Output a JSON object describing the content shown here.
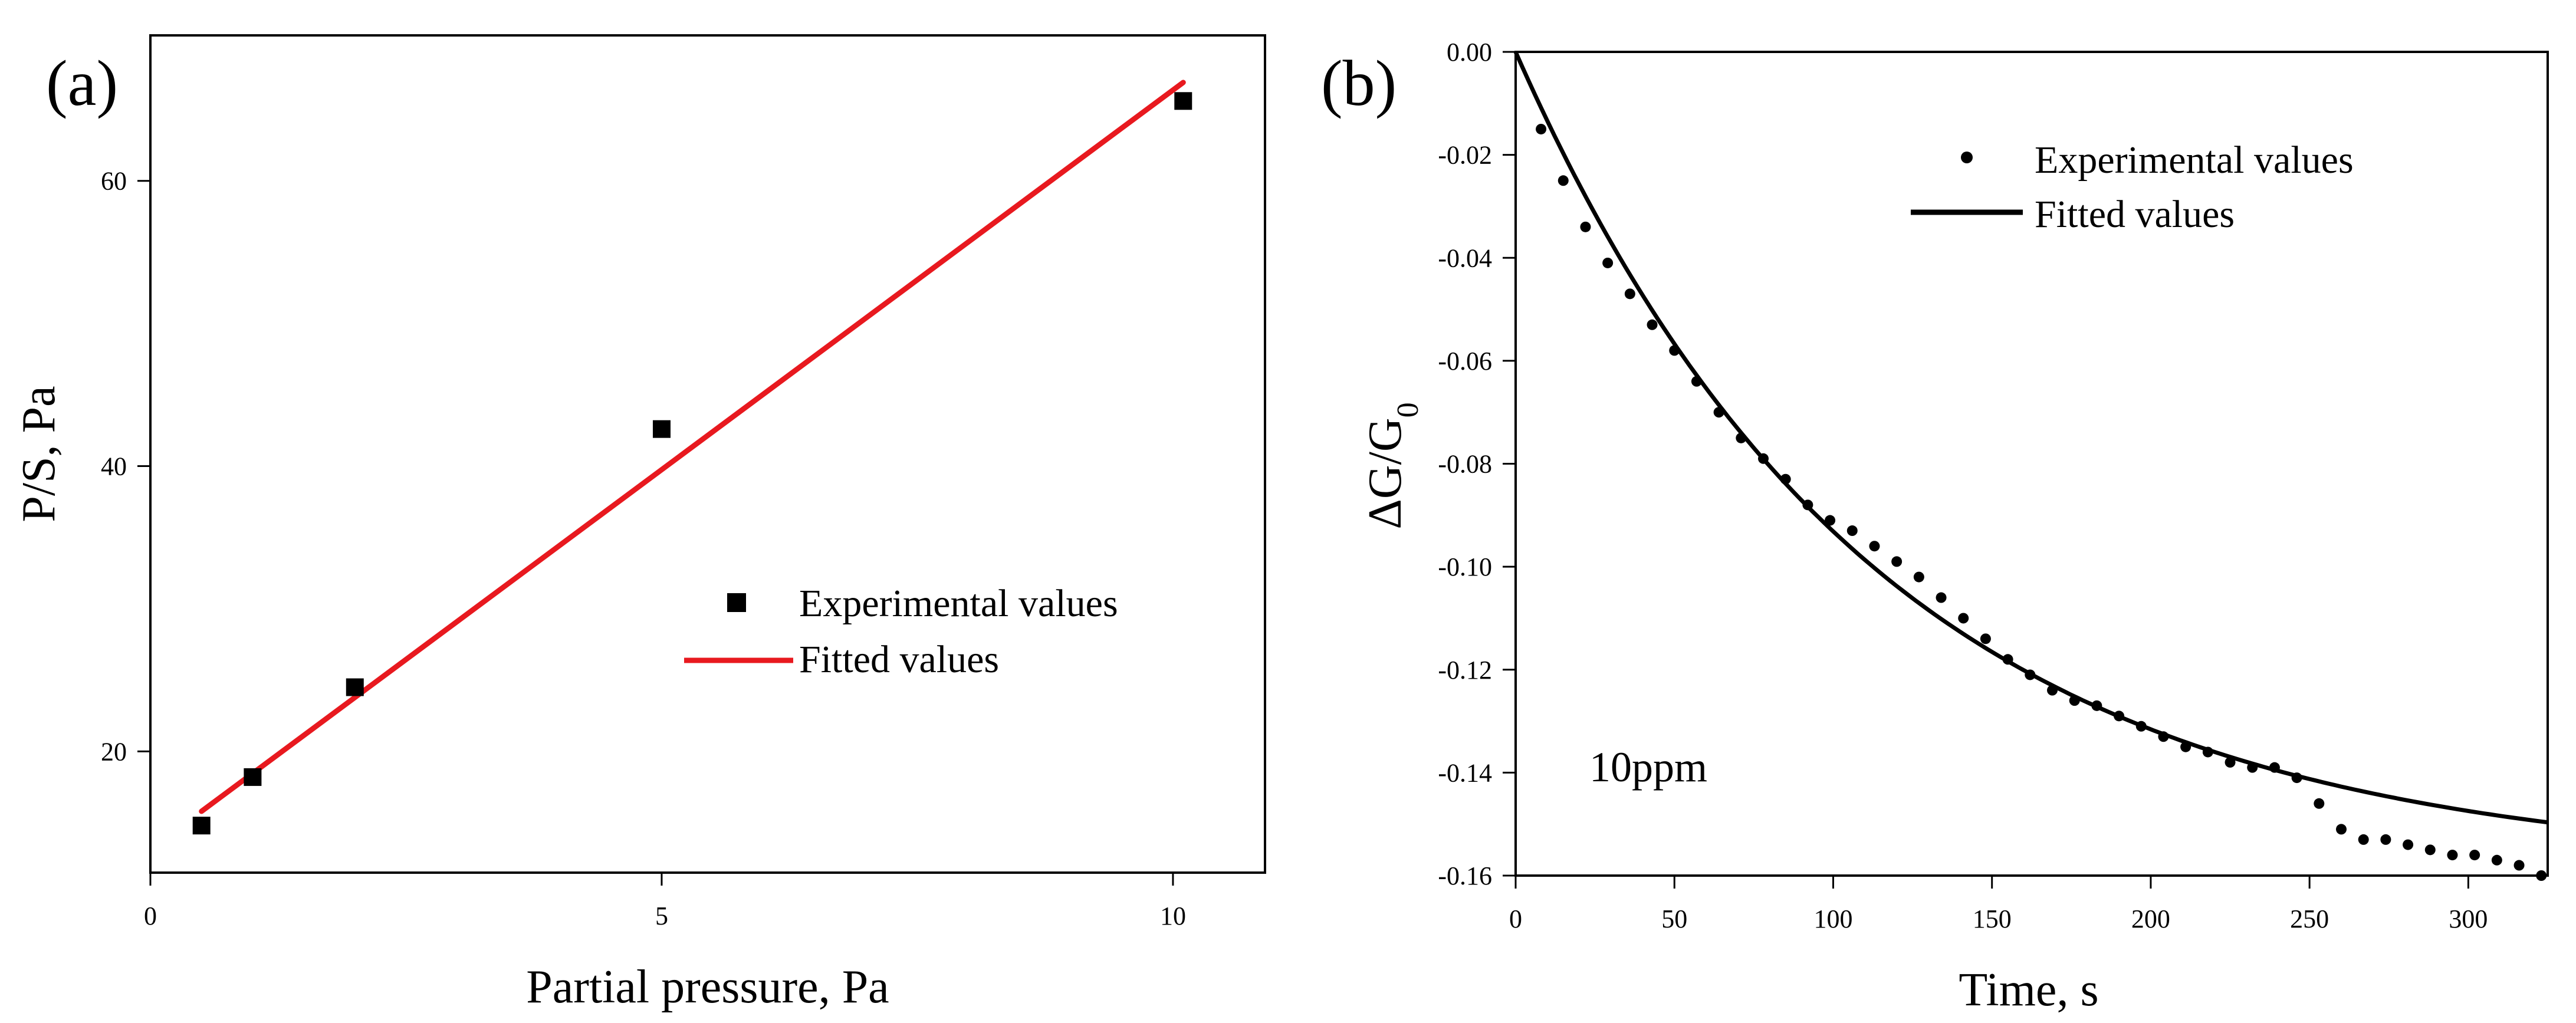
{
  "chart_data": [
    {
      "type": "scatter",
      "panel_label": "(a)",
      "title": "",
      "xlabel": "Partial pressure, Pa",
      "ylabel": "P/S, Pa",
      "xlim": [
        0,
        10.9
      ],
      "ylim": [
        11.5,
        70.2
      ],
      "xticks": [
        0,
        5,
        10
      ],
      "yticks": [
        20,
        40,
        60
      ],
      "xtick_labels": [
        "0",
        "5",
        "10"
      ],
      "ytick_labels": [
        "20",
        "40",
        "60"
      ],
      "legend_position": "center-right",
      "series": [
        {
          "name": "Experimental values",
          "kind": "scatter",
          "marker": "square",
          "color": "#000000",
          "x": [
            0.5,
            1.0,
            2.0,
            5.0,
            10.1
          ],
          "y": [
            14.8,
            18.2,
            24.5,
            42.6,
            65.6
          ]
        },
        {
          "name": "Fitted values",
          "kind": "line",
          "color": "#e8191f",
          "x": [
            0.5,
            10.1
          ],
          "y": [
            15.8,
            66.9
          ]
        }
      ]
    },
    {
      "type": "scatter",
      "panel_label": "(b)",
      "title": "",
      "xlabel": "Time, s",
      "ylabel": "ΔG/G",
      "ylabel_subscript": "0",
      "annotation": "10ppm",
      "xlim": [
        0,
        325
      ],
      "ylim": [
        -0.16,
        0.0
      ],
      "xticks": [
        0,
        50,
        100,
        150,
        200,
        250,
        300
      ],
      "yticks": [
        0.0,
        -0.02,
        -0.04,
        -0.06,
        -0.08,
        -0.1,
        -0.12,
        -0.14,
        -0.16
      ],
      "xtick_labels": [
        "0",
        "50",
        "100",
        "150",
        "200",
        "250",
        "300"
      ],
      "ytick_labels": [
        "0.00",
        "-0.02",
        "-0.04",
        "-0.06",
        "-0.08",
        "-0.10",
        "-0.12",
        "-0.14",
        "-0.16"
      ],
      "legend_position": "top-center",
      "series": [
        {
          "name": "Experimental values",
          "kind": "scatter",
          "marker": "circle",
          "color": "#000000",
          "x": [
            8,
            15,
            22,
            29,
            36,
            43,
            50,
            57,
            64,
            71,
            78,
            85,
            92,
            99,
            106,
            113,
            120,
            127,
            134,
            141,
            148,
            155,
            162,
            169,
            176,
            183,
            190,
            197,
            204,
            211,
            218,
            225,
            232,
            239,
            246,
            253,
            260,
            267,
            274,
            281,
            288,
            295,
            302,
            309,
            316,
            323
          ],
          "y": [
            -0.015,
            -0.025,
            -0.034,
            -0.041,
            -0.047,
            -0.053,
            -0.058,
            -0.064,
            -0.07,
            -0.075,
            -0.079,
            -0.083,
            -0.088,
            -0.091,
            -0.093,
            -0.096,
            -0.099,
            -0.102,
            -0.106,
            -0.11,
            -0.114,
            -0.118,
            -0.121,
            -0.124,
            -0.126,
            -0.127,
            -0.129,
            -0.131,
            -0.133,
            -0.135,
            -0.136,
            -0.138,
            -0.139,
            -0.139,
            -0.141,
            -0.146,
            -0.151,
            -0.153,
            -0.153,
            -0.154,
            -0.155,
            -0.156,
            -0.156,
            -0.157,
            -0.158,
            -0.16
          ]
        },
        {
          "name": "Fitted values",
          "kind": "curve",
          "color": "#000000",
          "model": "a*(1-exp(-t/tau))",
          "a": -0.1586,
          "tau": 113,
          "x_range": [
            0,
            325
          ]
        }
      ]
    }
  ]
}
